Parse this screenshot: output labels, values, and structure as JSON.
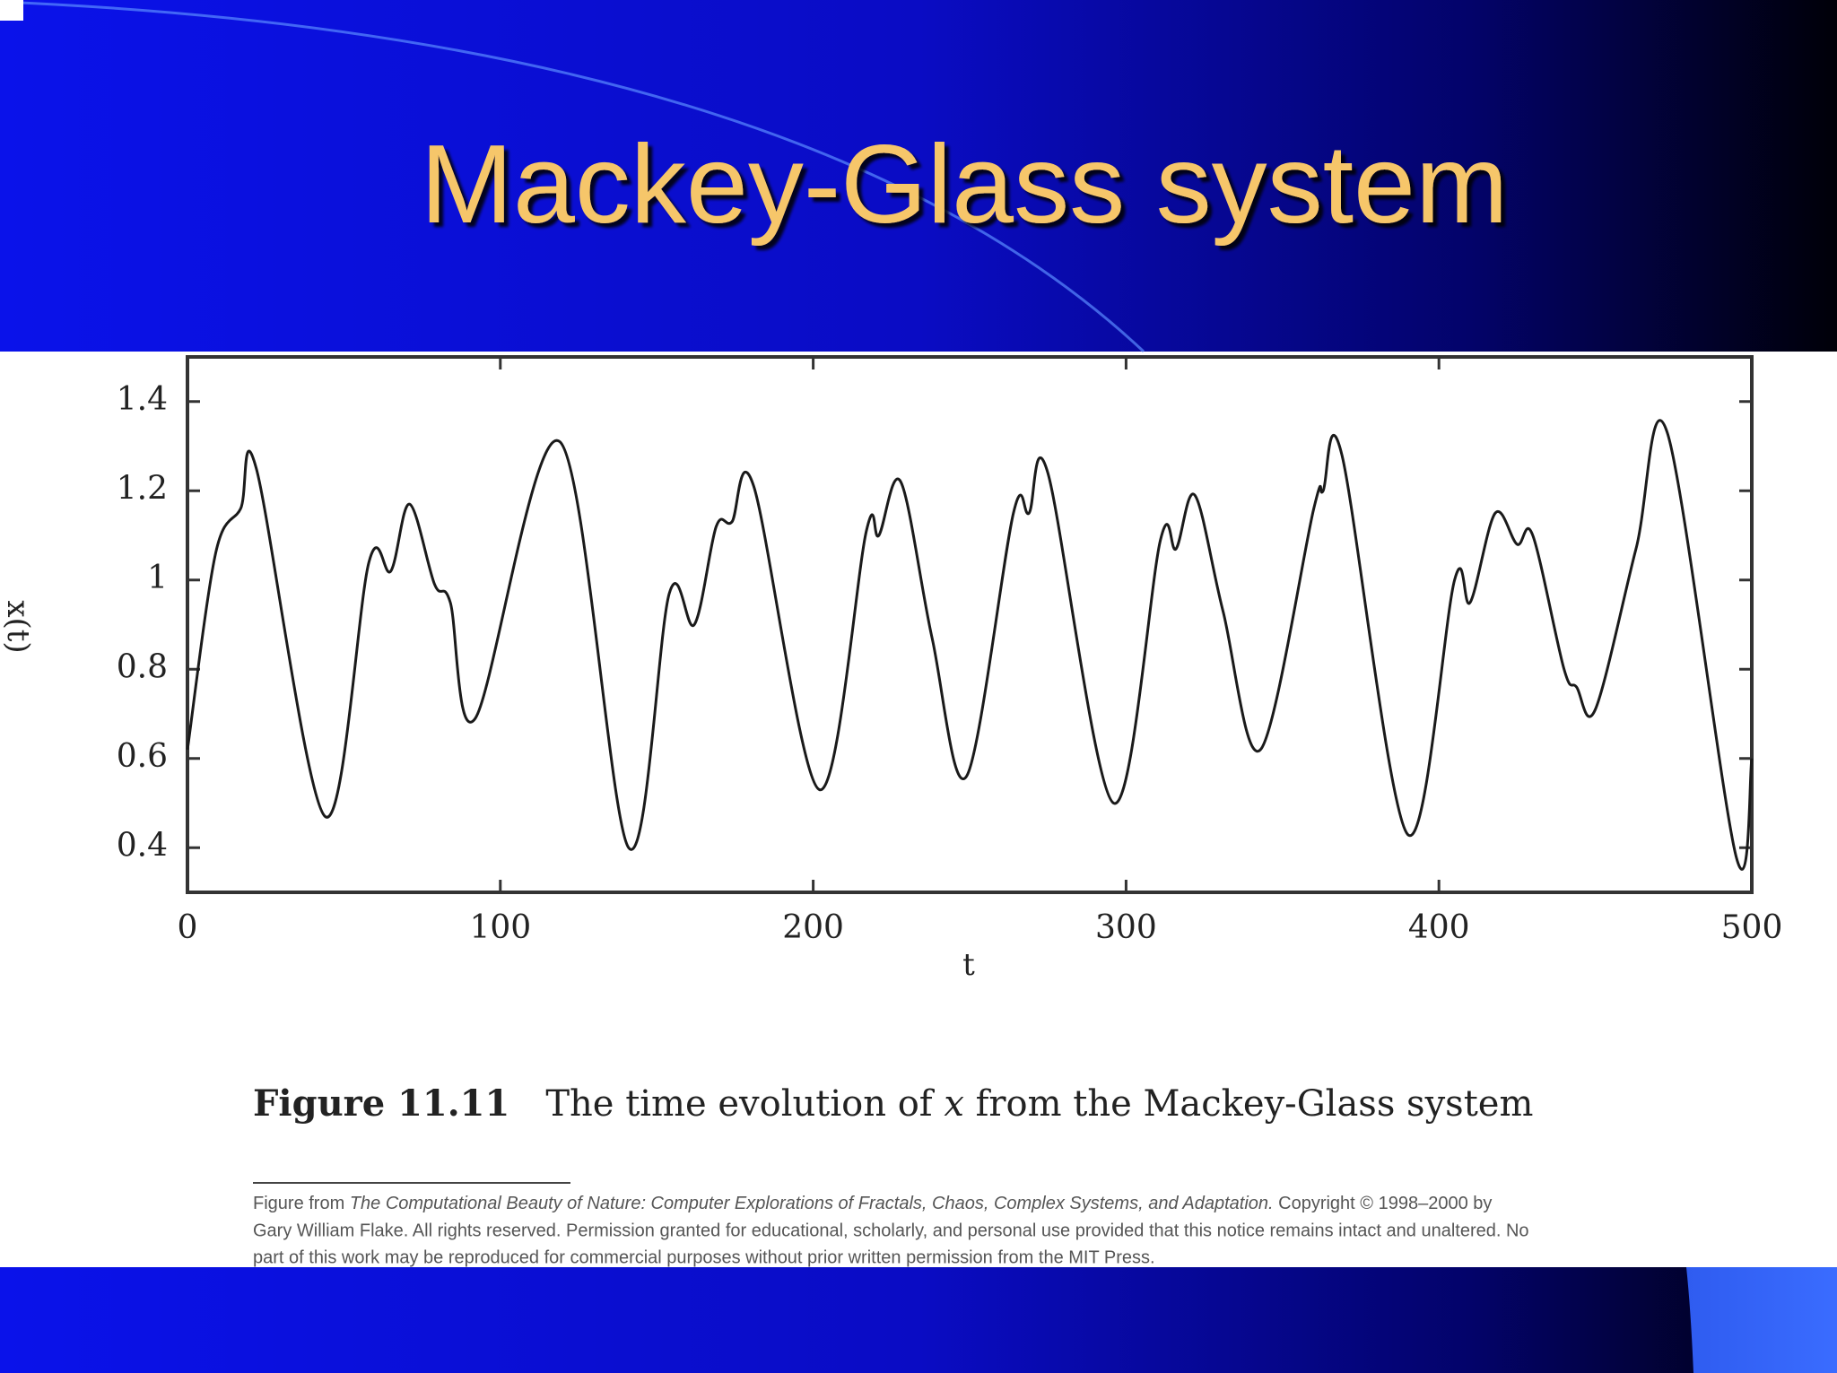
{
  "slide": {
    "title": "Mackey-Glass system"
  },
  "chart_data": {
    "type": "line",
    "x_label": "t",
    "y_label": "x(t)",
    "x": [
      0,
      9,
      17,
      22,
      44,
      58,
      65,
      71,
      79,
      84,
      92,
      119,
      141,
      154,
      162,
      169,
      174,
      181,
      202,
      217,
      221,
      228,
      238,
      249,
      264,
      269,
      275,
      296,
      311,
      316,
      322,
      331,
      343,
      360,
      363,
      369,
      390,
      405,
      410,
      418,
      425,
      430,
      440,
      444,
      450,
      463,
      473,
      495,
      500
    ],
    "series": [
      {
        "name": "x(t)",
        "color": "#1a1a1a",
        "values": [
          0.62,
          1.06,
          1.16,
          1.25,
          0.47,
          1.04,
          1.02,
          1.17,
          0.99,
          0.95,
          0.69,
          1.31,
          0.4,
          0.97,
          0.9,
          1.12,
          1.13,
          1.21,
          0.53,
          1.11,
          1.1,
          1.22,
          0.87,
          0.56,
          1.15,
          1.15,
          1.24,
          0.5,
          1.09,
          1.07,
          1.19,
          0.93,
          0.62,
          1.16,
          1.2,
          1.28,
          0.43,
          1.0,
          0.95,
          1.15,
          1.08,
          1.1,
          0.8,
          0.76,
          0.71,
          1.07,
          1.33,
          0.38,
          0.6
        ]
      }
    ],
    "xlim": [
      0,
      500
    ],
    "xticks": [
      0,
      100,
      200,
      300,
      400,
      500
    ],
    "ylim": [
      0.3,
      1.5
    ],
    "yticks": [
      0.4,
      0.6,
      0.8,
      1,
      1.2,
      1.4
    ],
    "grid": false
  },
  "caption": {
    "label": "Figure 11.11",
    "text_before": "The time evolution of ",
    "variable": "x",
    "text_after": " from the Mackey-Glass system"
  },
  "footnote": {
    "line1_start": "Figure from ",
    "line1_italic": "The Computational Beauty of Nature: Computer Explorations of Fractals, Chaos, Complex Systems, and Adaptation.",
    "line1_end": " Copyright © 1998–2000 by",
    "line2": "Gary William Flake. All rights reserved. Permission granted for educational, scholarly, and personal use provided that this notice remains intact and unaltered. No",
    "line3": "part of this work may be reproduced for commercial purposes without prior written permission from the MIT Press."
  }
}
